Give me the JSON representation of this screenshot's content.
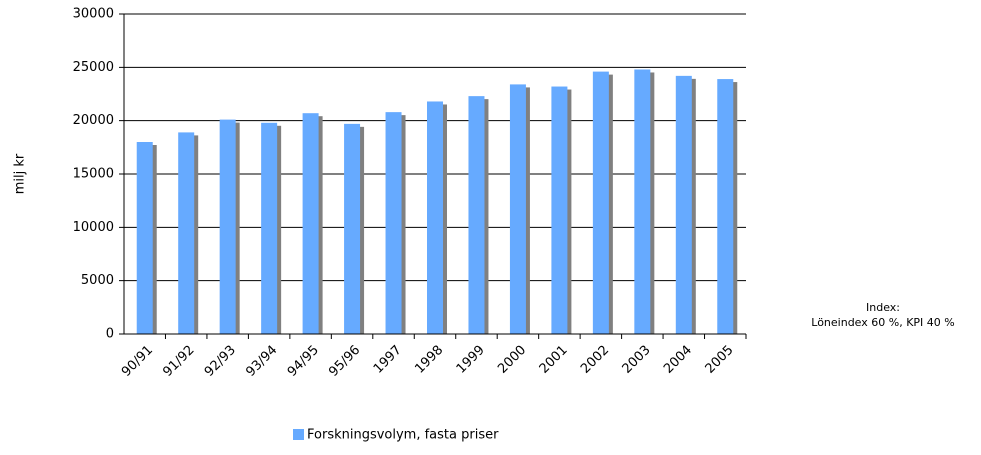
{
  "chart_data": {
    "type": "bar",
    "y_label": "milj kr",
    "categories": [
      "90/91",
      "91/92",
      "92/93",
      "93/94",
      "94/95",
      "95/96",
      "1997",
      "1998",
      "1999",
      "2000",
      "2001",
      "2002",
      "2003",
      "2004",
      "2005"
    ],
    "series": [
      {
        "name": "Forskningsvolym, fasta priser",
        "color": "#66aaff",
        "values": [
          18000,
          18900,
          20100,
          19800,
          20700,
          19700,
          20800,
          21800,
          22300,
          23400,
          23200,
          24600,
          24800,
          24200,
          23900
        ]
      }
    ],
    "ylim": [
      0,
      30000
    ],
    "yticks": [
      0,
      5000,
      10000,
      15000,
      20000,
      25000,
      30000
    ],
    "grid": true,
    "annotations": [
      "Index:",
      "Löneindex 60 %, KPI 40 %"
    ],
    "legend": "bottom"
  }
}
